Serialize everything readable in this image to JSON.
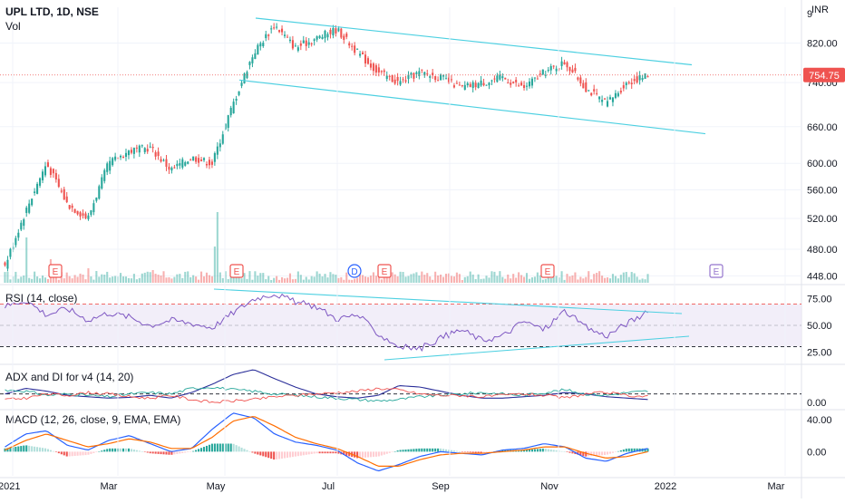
{
  "header": {
    "symbol_line": "UPL LTD, 1D, NSE",
    "volume_label": "Vol",
    "currency": "INR",
    "top_axis_partial": "9"
  },
  "colors": {
    "up": "#26a69a",
    "down": "#ef5350",
    "channel": "#4dd0e1",
    "rsi_line": "#7e57c2",
    "rsi_band": "#ede7f6",
    "macd_line": "#2962ff",
    "signal_line": "#ff6d00",
    "last_price_bg": "#ef5350",
    "plus_di": "#26a69a",
    "minus_di": "#ef5350",
    "adx": "#2a2e99",
    "earnings": "#ef5350",
    "dividend": "#2962ff"
  },
  "chart_data": [
    {
      "type": "candlestick",
      "title": "UPL LTD, 1D, NSE",
      "ylim": [
        440,
        900
      ],
      "y_scale": "log",
      "y_ticks": [
        "820.00",
        "740.00",
        "660.00",
        "600.00",
        "560.00",
        "520.00",
        "480.00",
        "448.00"
      ],
      "last_price": "754.75",
      "x_ticks": [
        "2021",
        "Mar",
        "May",
        "Jul",
        "Sep",
        "Nov",
        "2022",
        "Mar"
      ],
      "events": [
        {
          "label": "E",
          "month": "Feb",
          "kind": "earnings"
        },
        {
          "label": "E",
          "month": "May",
          "kind": "earnings"
        },
        {
          "label": "D",
          "month": "Jul",
          "kind": "dividend"
        },
        {
          "label": "E",
          "month": "Jul",
          "kind": "earnings"
        },
        {
          "label": "E",
          "month": "Oct",
          "kind": "earnings"
        },
        {
          "label": "E",
          "month": "Jan",
          "kind": "upcoming"
        }
      ],
      "channel_upper": [
        {
          "date": "May 2021",
          "price": 875
        },
        {
          "date": "Dec 2021",
          "price": 775
        }
      ],
      "channel_lower": [
        {
          "date": "May 2021",
          "price": 745
        },
        {
          "date": "Dec 2021",
          "price": 648
        }
      ],
      "price_path": [
        [
          "Jan",
          460
        ],
        [
          "Jan",
          530
        ],
        [
          "Feb",
          600
        ],
        [
          "Feb",
          540
        ],
        [
          "Feb",
          520
        ],
        [
          "Mar",
          600
        ],
        [
          "Mar",
          620
        ],
        [
          "Apr",
          625
        ],
        [
          "Apr",
          590
        ],
        [
          "Apr",
          610
        ],
        [
          "May",
          600
        ],
        [
          "May",
          700
        ],
        [
          "May",
          800
        ],
        [
          "Jun",
          860
        ],
        [
          "Jun",
          810
        ],
        [
          "Jul",
          830
        ],
        [
          "Jul",
          850
        ],
        [
          "Jul",
          800
        ],
        [
          "Aug",
          760
        ],
        [
          "Aug",
          740
        ],
        [
          "Aug",
          760
        ],
        [
          "Sep",
          750
        ],
        [
          "Sep",
          730
        ],
        [
          "Sep",
          740
        ],
        [
          "Oct",
          750
        ],
        [
          "Oct",
          730
        ],
        [
          "Oct",
          760
        ],
        [
          "Nov",
          780
        ],
        [
          "Nov",
          730
        ],
        [
          "Nov",
          700
        ],
        [
          "Dec",
          740
        ],
        [
          "Dec",
          754.75
        ]
      ]
    },
    {
      "type": "line",
      "title": "RSI (14, close)",
      "ylim": [
        15,
        85
      ],
      "y_ticks": [
        "75.00",
        "50.00",
        "25.00"
      ],
      "levels": [
        70,
        50,
        30
      ],
      "values": [
        68,
        74,
        60,
        66,
        55,
        62,
        58,
        50,
        55,
        52,
        48,
        62,
        75,
        80,
        72,
        68,
        56,
        60,
        42,
        30,
        28,
        38,
        46,
        36,
        40,
        54,
        46,
        64,
        48,
        40,
        52,
        62
      ]
    },
    {
      "type": "line",
      "title": "ADX and DI for v4 (14, 20)",
      "ylim": [
        0,
        60
      ],
      "y_ticks": [
        "0.00"
      ],
      "level": 20,
      "series": [
        {
          "name": "ADX",
          "values": [
            20,
            28,
            24,
            18,
            16,
            14,
            15,
            18,
            14,
            22,
            34,
            48,
            55,
            42,
            30,
            20,
            16,
            14,
            18,
            32,
            30,
            24,
            18,
            14,
            14,
            16,
            18,
            22,
            20,
            16,
            14,
            12
          ]
        },
        {
          "name": "+DI",
          "values": [
            26,
            24,
            18,
            20,
            18,
            16,
            20,
            22,
            20,
            28,
            30,
            26,
            24,
            20,
            18,
            16,
            14,
            12,
            10,
            12,
            16,
            18,
            20,
            22,
            20,
            18,
            22,
            26,
            20,
            18,
            22,
            24
          ]
        },
        {
          "name": "-DI",
          "values": [
            12,
            14,
            20,
            18,
            22,
            20,
            16,
            14,
            18,
            12,
            8,
            10,
            12,
            16,
            18,
            20,
            22,
            24,
            28,
            26,
            20,
            18,
            18,
            16,
            18,
            20,
            18,
            14,
            20,
            22,
            18,
            16
          ]
        }
      ]
    },
    {
      "type": "bar",
      "title": "MACD (12, 26, close, 9, EMA, EMA)",
      "ylim": [
        -30,
        50
      ],
      "y_ticks": [
        "40.00",
        "0.00"
      ],
      "macd": [
        6,
        22,
        26,
        8,
        2,
        14,
        20,
        10,
        0,
        4,
        28,
        48,
        42,
        22,
        12,
        8,
        2,
        -14,
        -24,
        -16,
        -6,
        0,
        -2,
        -4,
        2,
        4,
        10,
        6,
        -8,
        -12,
        -2,
        4
      ],
      "signal": [
        2,
        14,
        22,
        14,
        6,
        10,
        16,
        12,
        4,
        4,
        18,
        38,
        44,
        32,
        18,
        10,
        4,
        -6,
        -18,
        -18,
        -10,
        -4,
        -2,
        -2,
        0,
        2,
        6,
        6,
        -2,
        -8,
        -6,
        0
      ]
    }
  ]
}
